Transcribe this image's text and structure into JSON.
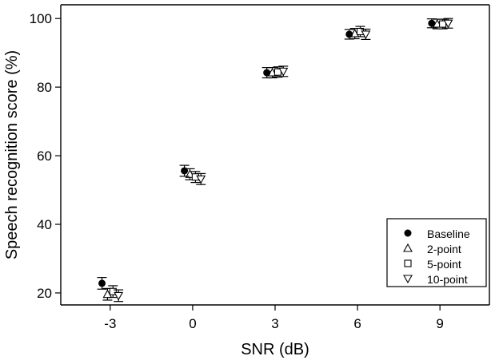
{
  "chart_data": {
    "type": "scatter",
    "xlabel": "SNR (dB)",
    "ylabel": "Speech recognition score (%)",
    "x": [
      -3,
      0,
      3,
      6,
      9
    ],
    "xticks": [
      "-3",
      "0",
      "3",
      "6",
      "9"
    ],
    "xlim": [
      -4.8,
      10.8
    ],
    "yticks": [
      "20",
      "40",
      "60",
      "80",
      "100"
    ],
    "ylim": [
      16.5,
      104
    ],
    "legend": {
      "position": "bottom-right"
    },
    "series": [
      {
        "name": "Baseline",
        "marker": "circle-filled",
        "offset": -0.3,
        "values": [
          22.8,
          55.6,
          84.2,
          95.4,
          98.6
        ],
        "errors": [
          1.7,
          1.6,
          1.5,
          1.4,
          1.3
        ]
      },
      {
        "name": "2-point",
        "marker": "triangle-up",
        "offset": -0.1,
        "values": [
          19.6,
          54.6,
          84.2,
          95.6,
          98.4
        ],
        "errors": [
          1.7,
          1.6,
          1.5,
          1.5,
          1.4
        ]
      },
      {
        "name": "5-point",
        "marker": "square",
        "offset": 0.1,
        "values": [
          20.4,
          53.8,
          84.4,
          96.2,
          98.4
        ],
        "errors": [
          1.7,
          1.6,
          1.5,
          1.5,
          1.4
        ]
      },
      {
        "name": "10-point",
        "marker": "triangle-down",
        "offset": 0.3,
        "values": [
          19.2,
          53.2,
          84.6,
          95.4,
          98.6
        ],
        "errors": [
          1.7,
          1.6,
          1.5,
          1.5,
          1.4
        ]
      }
    ]
  }
}
